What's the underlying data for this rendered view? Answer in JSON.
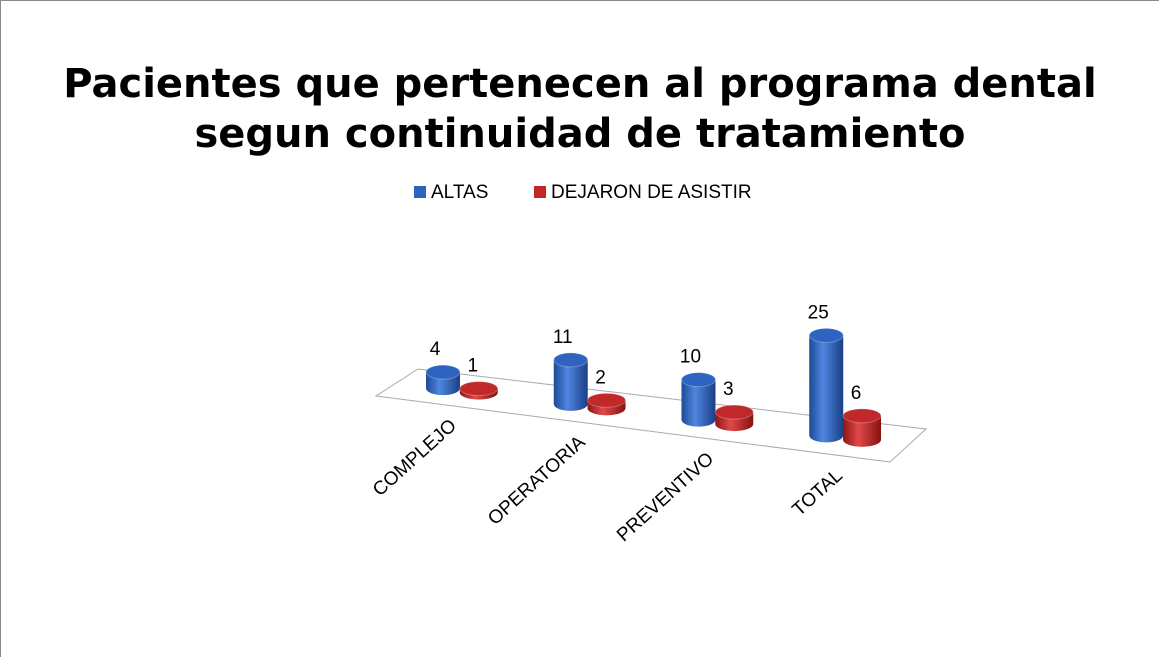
{
  "chart_data": {
    "type": "bar3d",
    "title": [
      "Pacientes que pertenecen al programa dental",
      "segun continuidad de tratamiento"
    ],
    "categories": [
      "COMPLEJO",
      "OPERATORIA",
      "PREVENTIVO",
      "TOTAL"
    ],
    "series": [
      {
        "name": "ALTAS",
        "color": "#2e64c0",
        "values": [
          4,
          11,
          10,
          25
        ]
      },
      {
        "name": "DEJARON DE ASISTIR",
        "color": "#c0282a",
        "values": [
          1,
          2,
          3,
          6
        ]
      }
    ]
  }
}
